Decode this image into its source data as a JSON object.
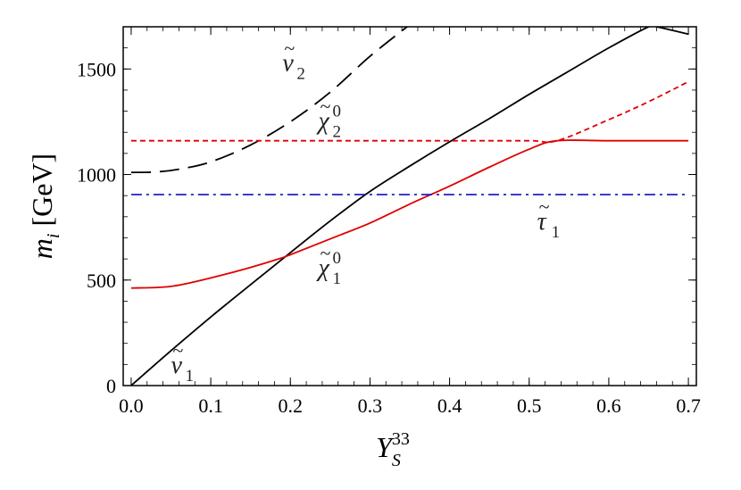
{
  "chart_data": {
    "type": "line",
    "xlim": [
      -0.01,
      0.71
    ],
    "ylim": [
      0,
      1700
    ],
    "x_ticks": [
      0.0,
      0.1,
      0.2,
      0.3,
      0.4,
      0.5,
      0.6,
      0.7
    ],
    "x_tick_labels": [
      "0.0",
      "0.1",
      "0.2",
      "0.3",
      "0.4",
      "0.5",
      "0.6",
      "0.7"
    ],
    "y_ticks": [
      0,
      500,
      1000,
      1500
    ],
    "y_tick_labels": [
      "0",
      "500",
      "1000",
      "1500"
    ],
    "xlabel": {
      "base": "Y",
      "sub": "S",
      "sup": "33"
    },
    "ylabel": {
      "base": "m",
      "sub": "i",
      "unit": " [GeV]"
    },
    "grid": false,
    "series": [
      {
        "name": "ν̃1",
        "color": "#000000",
        "style": "solid",
        "x": [
          0.0,
          0.05,
          0.1,
          0.15,
          0.2,
          0.25,
          0.3,
          0.35,
          0.4,
          0.45,
          0.5,
          0.55,
          0.6,
          0.65,
          0.66,
          0.7
        ],
        "y": [
          0,
          165,
          325,
          478,
          630,
          780,
          920,
          1040,
          1155,
          1265,
          1380,
          1490,
          1600,
          1700,
          1700,
          1665
        ]
      },
      {
        "name": "ν̃2",
        "color": "#000000",
        "style": "dashed",
        "x": [
          0.0,
          0.03,
          0.06,
          0.1,
          0.15,
          0.2,
          0.25,
          0.3,
          0.35
        ],
        "y": [
          1010,
          1012,
          1025,
          1060,
          1140,
          1250,
          1390,
          1560,
          1710
        ]
      },
      {
        "name": "χ̃01 / χ̃02 (solid)",
        "color": "#e00000",
        "style": "solid",
        "x": [
          0.0,
          0.05,
          0.1,
          0.15,
          0.185,
          0.2,
          0.25,
          0.3,
          0.35,
          0.4,
          0.45,
          0.5,
          0.535,
          0.6,
          0.7
        ],
        "y": [
          462,
          470,
          510,
          560,
          600,
          620,
          695,
          770,
          860,
          945,
          1035,
          1120,
          1160,
          1160,
          1160
        ]
      },
      {
        "name": "χ̃02 / χ̃01 (dashed)",
        "color": "#e00000",
        "style": "dashed",
        "x": [
          0.0,
          0.1,
          0.2,
          0.3,
          0.4,
          0.5,
          0.535,
          0.6,
          0.65,
          0.7
        ],
        "y": [
          1160,
          1160,
          1160,
          1160,
          1160,
          1160,
          1160,
          1260,
          1345,
          1440
        ]
      },
      {
        "name": "τ̃1",
        "color": "#2020c0",
        "style": "dashdot",
        "x": [
          0.0,
          0.7
        ],
        "y": [
          905,
          905
        ]
      }
    ],
    "annotations": [
      {
        "base": "ν",
        "sub": "2",
        "sup": "",
        "x": 0.19,
        "y": 1490
      },
      {
        "base": "χ",
        "sub": "2",
        "sup": "0",
        "x": 0.235,
        "y": 1215
      },
      {
        "base": "τ",
        "sub": "1",
        "sup": "",
        "x": 0.51,
        "y": 740
      },
      {
        "base": "χ",
        "sub": "1",
        "sup": "0",
        "x": 0.235,
        "y": 520
      },
      {
        "base": "ν",
        "sub": "1",
        "sup": "",
        "x": 0.05,
        "y": 60
      }
    ]
  }
}
